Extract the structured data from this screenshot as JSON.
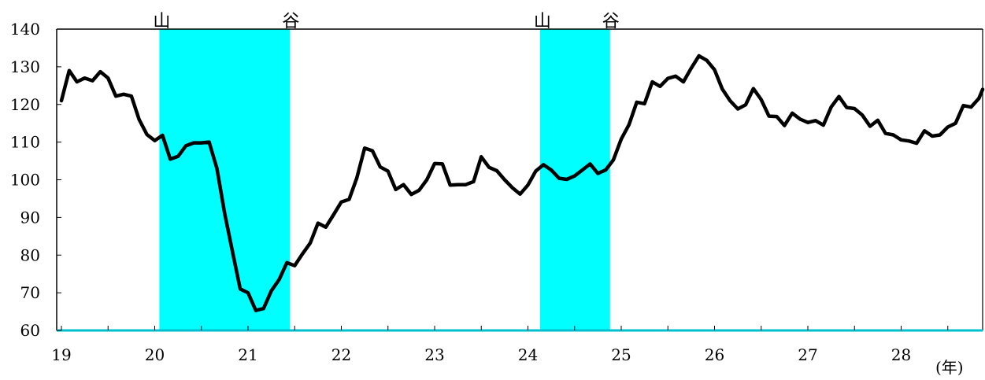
{
  "chart_data": {
    "type": "line",
    "x_unit_label": "(年)",
    "xlabel": "",
    "ylabel": "",
    "title": "",
    "ylim": [
      60,
      140
    ],
    "xlim": [
      19,
      28.9
    ],
    "y_ticks": [
      60,
      70,
      80,
      90,
      100,
      110,
      120,
      130,
      140
    ],
    "x_ticks": [
      19,
      20,
      21,
      22,
      23,
      24,
      25,
      26,
      27,
      28
    ],
    "grid": false,
    "colors": {
      "line": "#000000",
      "shade": "#00ffff",
      "axis": "#000000",
      "baseline": "#00c0d0"
    },
    "shaded_periods": [
      {
        "start": 20.05,
        "end": 21.45,
        "start_label": "山",
        "end_label": "谷"
      },
      {
        "start": 24.13,
        "end": 24.88,
        "start_label": "山",
        "end_label": "谷"
      }
    ],
    "series": [
      {
        "x_start": 19,
        "x_step": 0.08333,
        "values": [
          121.0,
          129.0,
          126.0,
          127.0,
          126.3,
          128.7,
          127.0,
          122.2,
          122.7,
          122.2,
          116.0,
          112.0,
          110.4,
          111.8,
          105.5,
          106.2,
          109.0,
          109.8,
          109.8,
          110.0,
          103.0,
          91.0,
          81.0,
          71.0,
          70.0,
          65.3,
          65.8,
          70.5,
          73.5,
          78.0,
          77.2,
          80.3,
          83.2,
          88.5,
          87.4,
          90.7,
          94.1,
          94.8,
          100.5,
          108.4,
          107.7,
          103.4,
          102.3,
          97.4,
          98.7,
          96.1,
          97.2,
          100.0,
          104.3,
          104.2,
          98.6,
          98.7,
          98.7,
          99.5,
          106.1,
          103.3,
          102.4,
          100.0,
          97.9,
          96.2,
          98.6,
          102.3,
          104.0,
          102.6,
          100.4,
          100.1,
          101.0,
          102.6,
          104.2,
          101.7,
          102.6,
          105.3,
          110.8,
          114.6,
          120.6,
          120.2,
          126.0,
          124.8,
          126.9,
          127.5,
          126.0,
          129.6,
          132.9,
          131.7,
          129.2,
          124.1,
          121.0,
          118.8,
          119.9,
          124.2,
          121.3,
          116.9,
          116.8,
          114.4,
          117.7,
          116.1,
          115.2,
          115.7,
          114.5,
          119.3,
          122.1,
          119.2,
          118.9,
          117.2,
          114.2,
          115.8,
          112.3,
          111.9,
          110.6,
          110.3,
          109.7,
          113.0,
          111.6,
          111.9,
          114.0,
          115.0,
          119.7,
          119.3,
          121.6,
          124.0
        ]
      }
    ]
  }
}
